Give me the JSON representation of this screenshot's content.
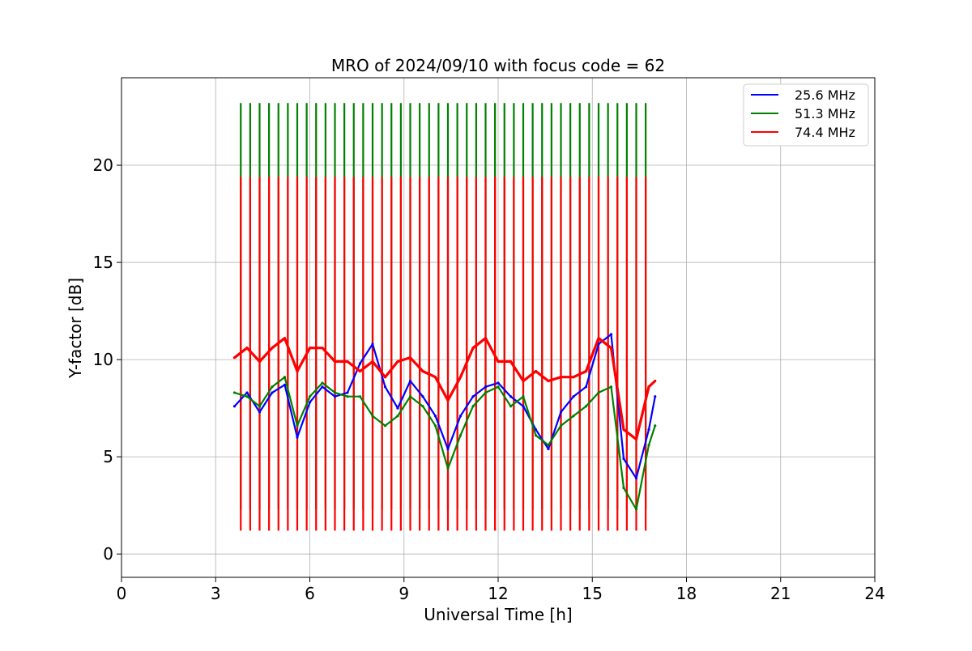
{
  "chart_data": {
    "type": "line",
    "title": "MRO of 2024/09/10 with focus code = 62",
    "xlabel": "Universal Time [h]",
    "ylabel": "Y-factor [dB]",
    "xlim": [
      0,
      24
    ],
    "ylim": [
      -1.2,
      24.5
    ],
    "xticks": [
      0,
      3,
      6,
      9,
      12,
      15,
      18,
      21,
      24
    ],
    "yticks": [
      0,
      5,
      10,
      15,
      20
    ],
    "grid": true,
    "legend_position": "top-right",
    "series": [
      {
        "name": "25.6 MHz",
        "color": "#0000ff",
        "x": [
          3.6,
          4.0,
          4.4,
          4.8,
          5.2,
          5.6,
          6.0,
          6.4,
          6.8,
          7.2,
          7.6,
          8.0,
          8.4,
          8.8,
          9.2,
          9.6,
          10.0,
          10.4,
          10.8,
          11.2,
          11.6,
          12.0,
          12.4,
          12.8,
          13.2,
          13.6,
          14.0,
          14.4,
          14.8,
          15.2,
          15.6,
          16.0,
          16.4,
          16.8,
          17.0
        ],
        "values": [
          7.6,
          8.3,
          7.3,
          8.3,
          8.7,
          6.0,
          7.8,
          8.6,
          8.1,
          8.3,
          9.8,
          10.8,
          8.6,
          7.5,
          8.9,
          8.1,
          7.1,
          5.4,
          7.1,
          8.1,
          8.6,
          8.8,
          8.1,
          7.6,
          6.4,
          5.4,
          7.3,
          8.1,
          8.6,
          10.8,
          11.3,
          4.9,
          3.9,
          6.4,
          8.1
        ]
      },
      {
        "name": "51.3 MHz",
        "color": "#008000",
        "x": [
          3.6,
          4.0,
          4.4,
          4.8,
          5.2,
          5.6,
          6.0,
          6.4,
          6.8,
          7.2,
          7.6,
          8.0,
          8.4,
          8.8,
          9.2,
          9.6,
          10.0,
          10.4,
          10.8,
          11.2,
          11.6,
          12.0,
          12.4,
          12.8,
          13.2,
          13.6,
          14.0,
          14.4,
          14.8,
          15.2,
          15.6,
          16.0,
          16.4,
          16.8,
          17.0
        ],
        "values": [
          8.3,
          8.1,
          7.6,
          8.6,
          9.1,
          6.6,
          8.1,
          8.8,
          8.3,
          8.1,
          8.1,
          7.1,
          6.6,
          7.1,
          8.1,
          7.6,
          6.6,
          4.4,
          6.1,
          7.6,
          8.3,
          8.6,
          7.6,
          8.1,
          6.1,
          5.6,
          6.6,
          7.1,
          7.6,
          8.3,
          8.6,
          3.4,
          2.3,
          5.6,
          6.6
        ]
      },
      {
        "name": "74.4 MHz",
        "color": "#ff0000",
        "x": [
          3.6,
          4.0,
          4.4,
          4.8,
          5.2,
          5.6,
          6.0,
          6.4,
          6.8,
          7.2,
          7.6,
          8.0,
          8.4,
          8.8,
          9.2,
          9.6,
          10.0,
          10.4,
          10.8,
          11.2,
          11.6,
          12.0,
          12.4,
          12.8,
          13.2,
          13.6,
          14.0,
          14.4,
          14.8,
          15.2,
          15.6,
          16.0,
          16.4,
          16.8,
          17.0
        ],
        "values": [
          10.1,
          10.6,
          9.9,
          10.6,
          11.1,
          9.4,
          10.6,
          10.6,
          9.9,
          9.9,
          9.4,
          9.9,
          9.1,
          9.9,
          10.1,
          9.4,
          9.1,
          7.9,
          9.1,
          10.6,
          11.1,
          9.9,
          9.9,
          8.9,
          9.4,
          8.9,
          9.1,
          9.1,
          9.4,
          11.1,
          10.6,
          6.4,
          5.9,
          8.6,
          8.9
        ]
      }
    ],
    "calibration_spikes": {
      "x_start": 3.8,
      "interval": 0.3,
      "count": 44,
      "series": [
        {
          "name": "51.3 MHz",
          "peak": 23.2,
          "trough": 2.3
        },
        {
          "name": "74.4 MHz",
          "peak": 19.4,
          "trough": 1.2
        }
      ]
    }
  }
}
